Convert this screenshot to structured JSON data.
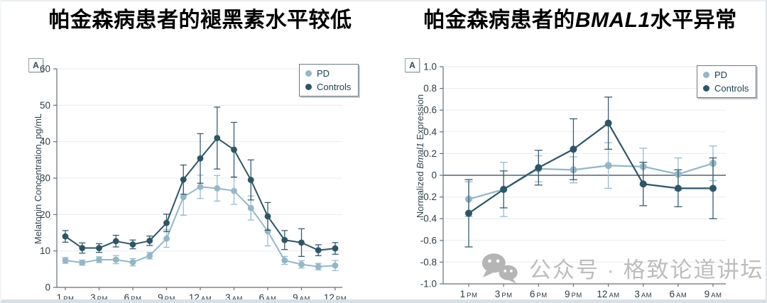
{
  "page": {
    "background": "#ffffff"
  },
  "left_panel": {
    "title": "帕金森病患者的褪黑素水平较低",
    "panel_label": "A"
  },
  "right_panel": {
    "title_prefix": "帕金森病患者的",
    "title_italic": "BMAL1",
    "title_suffix": "水平异常",
    "panel_label": "A"
  },
  "legend": {
    "items": [
      {
        "label": "PD",
        "color": "#94b7c8"
      },
      {
        "label": "Controls",
        "color": "#2e5567"
      }
    ]
  },
  "watermark": {
    "icon": "wechat-icon",
    "text": "公众号 · 格致论道讲坛",
    "color": "#b5b5b5"
  },
  "colors": {
    "pd": "#94b7c8",
    "controls": "#2e5567",
    "axis": "#667078",
    "grid": "#e8ebee",
    "zero_line": "#51646e",
    "tick_text": "#2f3d45"
  },
  "chart_data": [
    {
      "type": "line",
      "title": "帕金森病患者的褪黑素水平较低",
      "ylabel": "Melatonin Concentration, pg/mL",
      "xlabel": "",
      "ylim": [
        0,
        60
      ],
      "yticks": [
        0,
        10,
        20,
        30,
        40,
        50,
        60
      ],
      "ytick_labels": [
        "0",
        "10",
        "20",
        "30",
        "40",
        "50",
        "60"
      ],
      "n_points": 17,
      "x_tick_point_indices": [
        0,
        2,
        4,
        6,
        8,
        10,
        12,
        14,
        16
      ],
      "x_tick_labels": [
        "1 PM",
        "3 PM",
        "6 PM",
        "9 PM",
        "12 AM",
        "3 AM",
        "6 AM",
        "9 AM",
        "12 PM"
      ],
      "grid": true,
      "legend_position": "top-right",
      "series": [
        {
          "name": "PD",
          "color": "#94b7c8",
          "values": [
            7.4,
            6.8,
            7.6,
            7.6,
            6.9,
            8.7,
            13.4,
            24.8,
            27.6,
            27.2,
            26.5,
            21.8,
            15.4,
            7.4,
            6.3,
            5.7,
            6.0
          ],
          "errors": [
            0.8,
            0.7,
            0.8,
            1.1,
            1.0,
            0.9,
            2.4,
            5.0,
            3.2,
            3.5,
            3.7,
            3.3,
            4.0,
            1.1,
            1.0,
            0.9,
            1.4
          ]
        },
        {
          "name": "Controls",
          "color": "#2e5567",
          "values": [
            14.0,
            10.8,
            10.8,
            12.7,
            11.8,
            12.8,
            17.7,
            29.6,
            35.4,
            41.0,
            37.8,
            29.5,
            19.5,
            13.0,
            12.3,
            10.2,
            10.7
          ],
          "errors": [
            1.6,
            1.4,
            1.2,
            1.6,
            1.2,
            1.3,
            2.4,
            4.0,
            6.8,
            8.5,
            7.5,
            5.5,
            3.8,
            2.6,
            3.8,
            1.5,
            1.6
          ]
        }
      ]
    },
    {
      "type": "line",
      "title": "帕金森病患者的BMAL1水平异常",
      "ylabel": "Normalized Bmal1 Expression",
      "ylabel_prefix": "Normalized ",
      "ylabel_italic": "Bmal1",
      "ylabel_suffix": " Expression",
      "xlabel": "",
      "ylim": [
        -1.0,
        1.0
      ],
      "yticks": [
        -1.0,
        -0.8,
        -0.6,
        -0.4,
        -0.2,
        0,
        0.2,
        0.4,
        0.6,
        0.8,
        1.0
      ],
      "ytick_labels": [
        "-1.0",
        "-0.8",
        "-0.6",
        "-0.4",
        "-0.2",
        "0",
        "0.2",
        "0.4",
        "0.6",
        "0.8",
        "1.0"
      ],
      "n_points": 8,
      "x_tick_point_indices": [
        0,
        1,
        2,
        3,
        4,
        5,
        6,
        7
      ],
      "x_tick_labels": [
        "1 PM",
        "3 PM",
        "6 PM",
        "9 PM",
        "12 AM",
        "3 AM",
        "6 AM",
        "9 AM"
      ],
      "grid": true,
      "zero_line": true,
      "legend_position": "top-right",
      "series": [
        {
          "name": "PD",
          "color": "#94b7c8",
          "values": [
            -0.22,
            -0.13,
            0.06,
            0.05,
            0.09,
            0.08,
            0.01,
            0.11
          ],
          "errors": [
            0.16,
            0.25,
            0.12,
            0.12,
            0.21,
            0.17,
            0.15,
            0.16
          ]
        },
        {
          "name": "Controls",
          "color": "#2e5567",
          "values": [
            -0.35,
            -0.13,
            0.07,
            0.24,
            0.48,
            -0.08,
            -0.12,
            -0.12
          ],
          "errors": [
            0.31,
            0.17,
            0.16,
            0.28,
            0.24,
            0.2,
            0.17,
            0.28
          ]
        }
      ]
    }
  ]
}
